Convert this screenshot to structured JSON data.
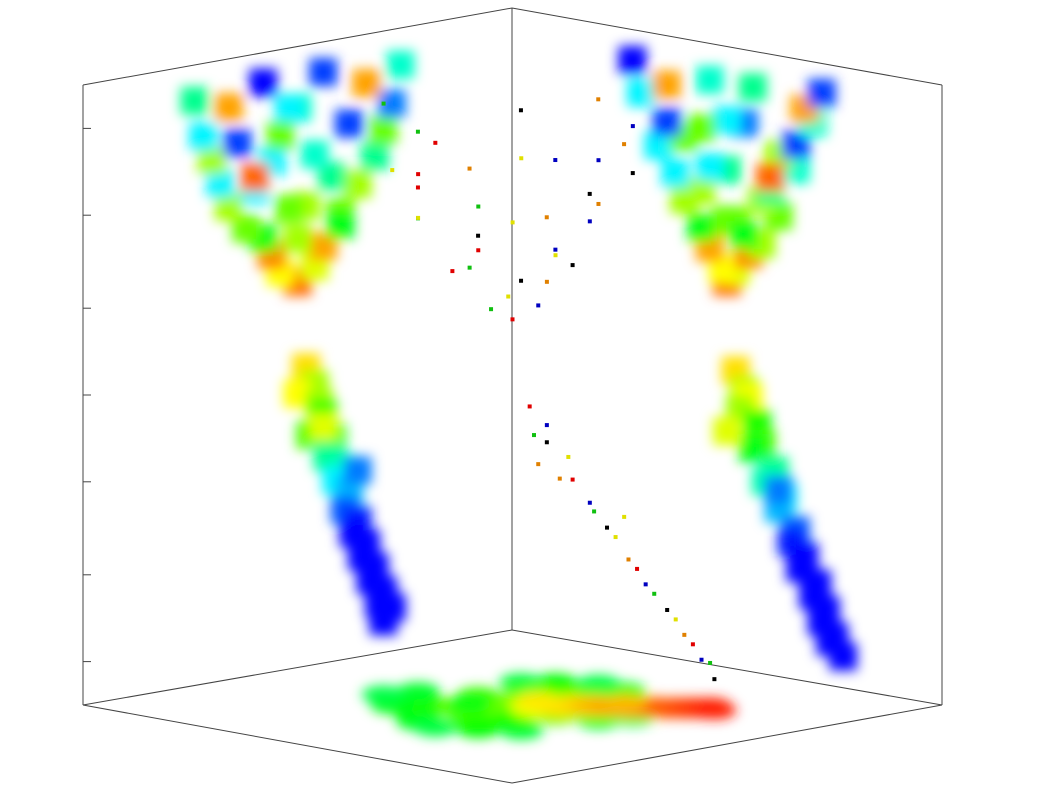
{
  "chart_data": {
    "type": "scatter3d",
    "xlim": [
      0,
      1
    ],
    "ylim": [
      0,
      1
    ],
    "zlim": [
      0,
      1
    ],
    "zticks": [
      0.07,
      0.21,
      0.36,
      0.5,
      0.64,
      0.79,
      0.93
    ],
    "palette": [
      "#e00000",
      "#0000c0",
      "#10c010",
      "#000000",
      "#e0e000",
      "#e08000"
    ],
    "x": [
      0.5,
      0.46,
      0.54,
      0.44,
      0.56,
      0.5,
      0.58,
      0.4,
      0.62,
      0.48,
      0.52,
      0.36,
      0.66,
      0.42,
      0.6,
      0.32,
      0.68,
      0.46,
      0.56,
      0.3,
      0.7,
      0.38,
      0.64,
      0.28,
      0.72,
      0.5,
      0.52,
      0.34,
      0.66,
      0.26,
      0.74,
      0.44,
      0.58,
      0.4,
      0.6,
      0.54,
      0.48,
      0.46,
      0.5,
      0.45,
      0.44,
      0.47,
      0.42,
      0.43,
      0.4,
      0.41,
      0.38,
      0.39,
      0.36,
      0.37,
      0.34,
      0.35,
      0.32,
      0.33,
      0.3,
      0.31,
      0.28,
      0.3,
      0.36,
      0.44
    ],
    "y": [
      0.5,
      0.52,
      0.49,
      0.46,
      0.55,
      0.58,
      0.44,
      0.5,
      0.52,
      0.4,
      0.62,
      0.44,
      0.58,
      0.6,
      0.38,
      0.5,
      0.46,
      0.66,
      0.34,
      0.4,
      0.62,
      0.66,
      0.36,
      0.54,
      0.5,
      0.7,
      0.3,
      0.36,
      0.68,
      0.46,
      0.56,
      0.72,
      0.28,
      0.54,
      0.6,
      0.44,
      0.52,
      0.54,
      0.55,
      0.53,
      0.57,
      0.58,
      0.56,
      0.61,
      0.59,
      0.63,
      0.62,
      0.66,
      0.65,
      0.68,
      0.67,
      0.71,
      0.7,
      0.73,
      0.72,
      0.75,
      0.74,
      0.77,
      0.62,
      0.5
    ],
    "z": [
      0.62,
      0.64,
      0.64,
      0.67,
      0.67,
      0.69,
      0.7,
      0.72,
      0.72,
      0.74,
      0.74,
      0.76,
      0.76,
      0.78,
      0.78,
      0.8,
      0.8,
      0.82,
      0.82,
      0.84,
      0.84,
      0.86,
      0.86,
      0.88,
      0.88,
      0.9,
      0.9,
      0.92,
      0.92,
      0.94,
      0.94,
      0.95,
      0.95,
      0.7,
      0.8,
      0.86,
      0.48,
      0.45,
      0.44,
      0.42,
      0.4,
      0.37,
      0.36,
      0.33,
      0.31,
      0.29,
      0.27,
      0.24,
      0.22,
      0.2,
      0.18,
      0.16,
      0.14,
      0.12,
      0.1,
      0.08,
      0.07,
      0.05,
      0.3,
      0.38
    ]
  }
}
